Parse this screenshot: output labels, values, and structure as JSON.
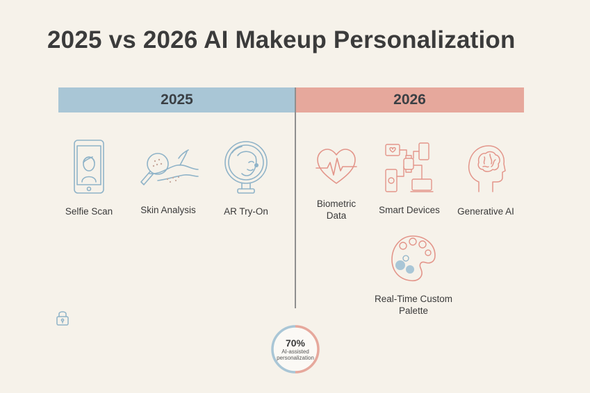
{
  "title": "2025 vs 2026 AI Makeup Personalization",
  "columns": {
    "left": {
      "year": "2025",
      "color": "#a9c6d6"
    },
    "right": {
      "year": "2026",
      "color": "#e6a89c"
    }
  },
  "items_2025": [
    {
      "label": "Selfie Scan",
      "icon": "smartphone-selfie-icon"
    },
    {
      "label": "Skin Analysis",
      "icon": "magnifier-skin-icon"
    },
    {
      "label": "AR Try-On",
      "icon": "mirror-face-icon"
    }
  ],
  "items_2026": [
    {
      "label": "Biometric Data",
      "icon": "heart-pulse-icon"
    },
    {
      "label": "Smart Devices",
      "icon": "connected-devices-icon"
    },
    {
      "label": "Generative AI",
      "icon": "brain-head-icon"
    },
    {
      "label": "Real-Time Custom Palette",
      "icon": "palette-icon"
    }
  ],
  "badge": {
    "value": "70%",
    "caption": "AI-assisted personalization"
  }
}
